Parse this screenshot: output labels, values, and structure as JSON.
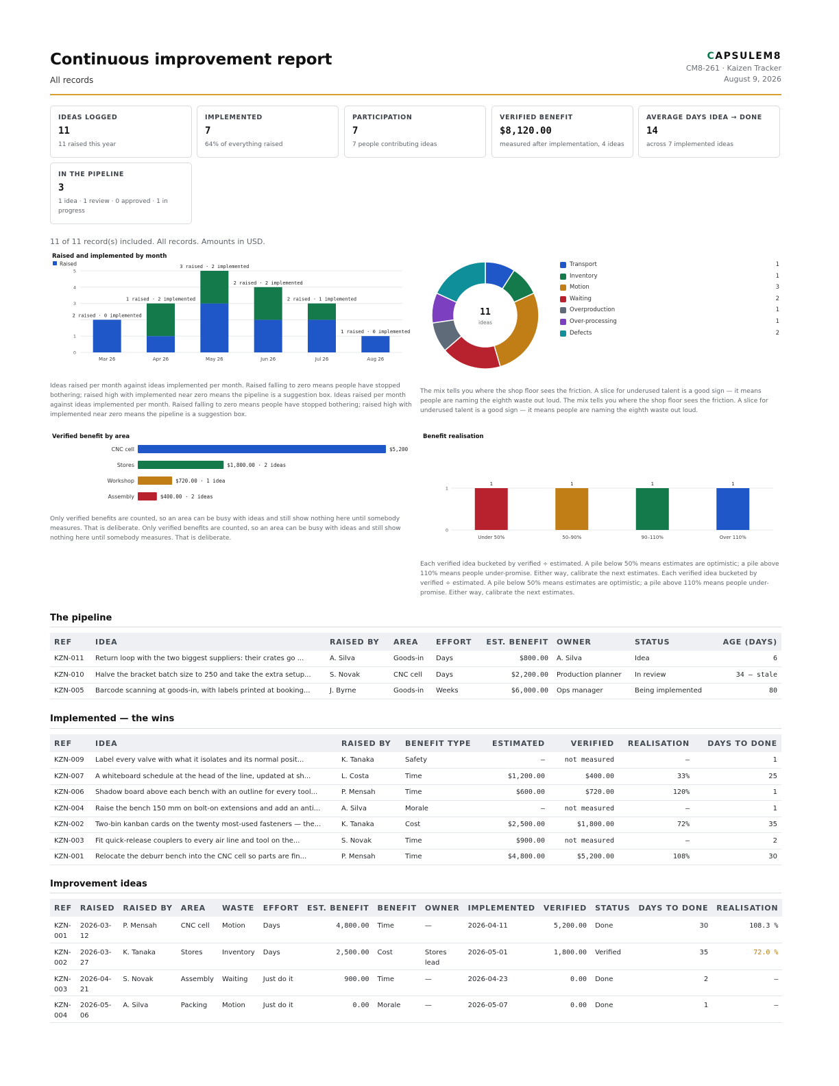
{
  "header": {
    "title": "Continuous improvement report",
    "subtitle": "All records",
    "brand": "CAPSULEM8",
    "brand_c": "C",
    "brand_rest": "APSULEM8",
    "doc_ref": "CM8-261 · Kaizen Tracker",
    "date": "August 9, 2026"
  },
  "kpis": [
    {
      "label": "IDEAS LOGGED",
      "value": "11",
      "note": "11 raised this year"
    },
    {
      "label": "IMPLEMENTED",
      "value": "7",
      "note": "64% of everything raised"
    },
    {
      "label": "PARTICIPATION",
      "value": "7",
      "note": "7 people contributing ideas"
    },
    {
      "label": "VERIFIED BENEFIT",
      "value": "$8,120.00",
      "note": "measured after implementation, 4 ideas"
    },
    {
      "label": "AVERAGE DAYS IDEA → DONE",
      "value": "14",
      "note": "across 7 implemented ideas"
    },
    {
      "label": "IN THE PIPELINE",
      "value": "3",
      "note": "1 idea · 1 review · 0 approved · 1 in progress"
    }
  ],
  "scope_note": "11 of 11 record(s) included. All records. Amounts in USD.",
  "captions": {
    "monthly": "Ideas raised per month against ideas implemented per month. Raised falling to zero means people have stopped bothering; raised high with implemented near zero means the pipeline is a suggestion box. Ideas raised per month against ideas implemented per month. Raised falling to zero means people have stopped bothering; raised high with implemented near zero means the pipeline is a suggestion box.",
    "waste": "The mix tells you where the shop floor sees the friction. A slice for underused talent is a good sign — it means people are naming the eighth waste out loud. The mix tells you where the shop floor sees the friction. A slice for underused talent is a good sign — it means people are naming the eighth waste out loud.",
    "area": "Only verified benefits are counted, so an area can be busy with ideas and still show nothing here until somebody measures. That is deliberate. Only verified benefits are counted, so an area can be busy with ideas and still show nothing here until somebody measures. That is deliberate.",
    "realisation": "Each verified idea bucketed by verified ÷ estimated. A pile below 50% means estimates are optimistic; a pile above 110% means people under-promise. Either way, calibrate the next estimates. Each verified idea bucketed by verified ÷ estimated. A pile below 50% means estimates are optimistic; a pile above 110% means people under-promise. Either way, calibrate the next estimates."
  },
  "chart_data": [
    {
      "type": "bar",
      "stacked": true,
      "title": "Raised and implemented by month",
      "categories": [
        "Mar 26",
        "Apr 26",
        "May 26",
        "Jun 26",
        "Jul 26",
        "Aug 26"
      ],
      "series": [
        {
          "name": "Raised",
          "values": [
            2,
            1,
            3,
            2,
            2,
            1
          ],
          "color": "#1f57c8"
        },
        {
          "values": [
            0,
            2,
            2,
            2,
            1,
            0
          ],
          "color": "#147a4c"
        }
      ],
      "data_labels": [
        "2 raised · 0 implemented",
        "1 raised · 2 implemented",
        "3 raised · 2 implemented",
        "2 raised · 2 implemented",
        "2 raised · 1 implemented",
        "1 raised · 0 implemented"
      ],
      "y_ticks": [
        "0",
        "1",
        "2",
        "3",
        "4",
        "5"
      ],
      "y_tick_labels": [
        "0",
        "1",
        "",
        "3",
        "4",
        "5"
      ],
      "ylim": [
        0,
        5
      ],
      "grid": true,
      "legend": "top-left"
    },
    {
      "type": "pie",
      "donut": true,
      "center_value": "11",
      "center_label": "ideas",
      "labels": [
        "Transport",
        "Inventory",
        "Motion",
        "Waiting",
        "Overproduction",
        "Over-processing",
        "Defects"
      ],
      "values": [
        1,
        1,
        3,
        2,
        1,
        1,
        2
      ],
      "colors": [
        "#1f57c8",
        "#147a4c",
        "#c17d16",
        "#b8222e",
        "#5f6b78",
        "#7b3fbf",
        "#0f8f99"
      ],
      "legend": "right"
    },
    {
      "type": "bar",
      "orientation": "horizontal",
      "title": "Verified benefit by area",
      "categories": [
        "CNC cell",
        "Stores",
        "Workshop",
        "Assembly"
      ],
      "values": [
        5200,
        1800,
        720,
        400
      ],
      "data_labels": [
        "$5,200",
        "$1,800.00 · 2 ideas",
        "$720.00 · 1 idea",
        "$400.00 · 2 ideas"
      ],
      "colors": [
        "#1f57c8",
        "#147a4c",
        "#c17d16",
        "#b8222e"
      ]
    },
    {
      "type": "bar",
      "title": "Benefit realisation",
      "categories": [
        "Under 50%",
        "50–90%",
        "90–110%",
        "Over 110%"
      ],
      "values": [
        1,
        1,
        1,
        1
      ],
      "data_labels": [
        "1",
        "1",
        "1",
        "1"
      ],
      "colors": [
        "#b8222e",
        "#c17d16",
        "#147a4c",
        "#1f57c8"
      ],
      "y_ticks": [
        "0",
        "1"
      ],
      "ylim": [
        0,
        2
      ],
      "grid": true
    }
  ],
  "pipeline": {
    "title": "The pipeline",
    "columns": [
      "REF",
      "IDEA",
      "RAISED BY",
      "AREA",
      "EFFORT",
      "EST. BENEFIT",
      "OWNER",
      "STATUS",
      "AGE (DAYS)"
    ],
    "rows": [
      [
        "KZN-011",
        "Return loop with the two biggest suppliers: their crates go ...",
        "A. Silva",
        "Goods-in",
        "Days",
        "$800.00",
        "A. Silva",
        "Idea",
        "6"
      ],
      [
        "KZN-010",
        "Halve the bracket batch size to 250 and take the extra setup...",
        "S. Novak",
        "CNC cell",
        "Days",
        "$2,200.00",
        "Production planner",
        "In review",
        "34 — stale"
      ],
      [
        "KZN-005",
        "Barcode scanning at goods-in, with labels printed at booking...",
        "J. Byrne",
        "Goods-in",
        "Weeks",
        "$6,000.00",
        "Ops manager",
        "Being implemented",
        "80"
      ]
    ]
  },
  "wins": {
    "title": "Implemented — the wins",
    "columns": [
      "REF",
      "IDEA",
      "RAISED BY",
      "BENEFIT TYPE",
      "ESTIMATED",
      "VERIFIED",
      "REALISATION",
      "DAYS TO DONE"
    ],
    "rows": [
      [
        "KZN-009",
        "Label every valve with what it isolates and its normal posit...",
        "K. Tanaka",
        "Safety",
        "—",
        "not measured",
        "—",
        "1"
      ],
      [
        "KZN-007",
        "A whiteboard schedule at the head of the line, updated at sh...",
        "L. Costa",
        "Time",
        "$1,200.00",
        "$400.00",
        "33%",
        "25"
      ],
      [
        "KZN-006",
        "Shadow board above each bench with an outline for every tool...",
        "P. Mensah",
        "Time",
        "$600.00",
        "$720.00",
        "120%",
        "1"
      ],
      [
        "KZN-004",
        "Raise the bench 150 mm on bolt-on extensions and add an anti...",
        "A. Silva",
        "Morale",
        "—",
        "not measured",
        "—",
        "1"
      ],
      [
        "KZN-002",
        "Two-bin kanban cards on the twenty most-used fasteners — the...",
        "K. Tanaka",
        "Cost",
        "$2,500.00",
        "$1,800.00",
        "72%",
        "35"
      ],
      [
        "KZN-003",
        "Fit quick-release couplers to every air line and tool on the...",
        "S. Novak",
        "Time",
        "$900.00",
        "not measured",
        "—",
        "2"
      ],
      [
        "KZN-001",
        "Relocate the deburr bench into the CNC cell so parts are fin...",
        "P. Mensah",
        "Time",
        "$4,800.00",
        "$5,200.00",
        "108%",
        "30"
      ]
    ]
  },
  "ideas": {
    "title": "Improvement ideas",
    "columns": [
      "REF",
      "RAISED",
      "RAISED BY",
      "AREA",
      "WASTE",
      "EFFORT",
      "EST. BENEFIT",
      "BENEFIT",
      "OWNER",
      "IMPLEMENTED",
      "VERIFIED",
      "STATUS",
      "DAYS TO DONE",
      "REALISATION"
    ],
    "rows": [
      [
        "KZN-001",
        "2026-03-12",
        "P. Mensah",
        "CNC cell",
        "Motion",
        "Days",
        "4,800.00",
        "Time",
        "—",
        "2026-04-11",
        "5,200.00",
        "Done",
        "30",
        "108.3 %"
      ],
      [
        "KZN-002",
        "2026-03-27",
        "K. Tanaka",
        "Stores",
        "Inventory",
        "Days",
        "2,500.00",
        "Cost",
        "Stores lead",
        "2026-05-01",
        "1,800.00",
        "Verified",
        "35",
        "72.0 %"
      ],
      [
        "KZN-003",
        "2026-04-21",
        "S. Novak",
        "Assembly",
        "Waiting",
        "Just do it",
        "900.00",
        "Time",
        "—",
        "2026-04-23",
        "0.00",
        "Done",
        "2",
        "—"
      ],
      [
        "KZN-004",
        "2026-05-06",
        "A. Silva",
        "Packing",
        "Motion",
        "Just do it",
        "0.00",
        "Morale",
        "—",
        "2026-05-07",
        "0.00",
        "Done",
        "1",
        "—"
      ]
    ]
  }
}
